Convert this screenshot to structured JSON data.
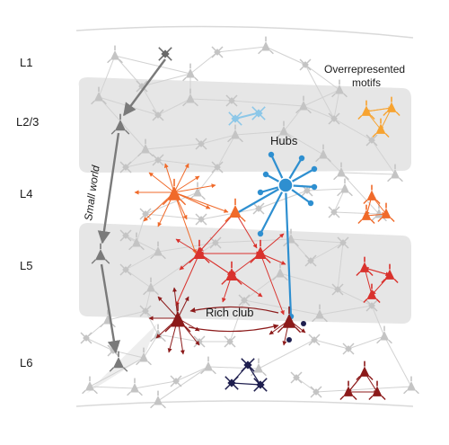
{
  "layers": [
    "L1",
    "L2/3",
    "L4",
    "L5",
    "L6"
  ],
  "labels": {
    "small_world": "Small world",
    "hubs": "Hubs",
    "rich_club": "Rich club",
    "motifs_line1": "Overrepresented",
    "motifs_line2": "motifs"
  },
  "colors": {
    "band": "#e6e6e6",
    "background_neuron": "#c4c4c4",
    "small_world": "#7a7a7a",
    "small_world_top": "#6a6a6a",
    "hub": "#2e8fd0",
    "hub_light": "#8cc7e8",
    "l4_orange": "#f06a2a",
    "l5_red": "#d9322d",
    "deep_red": "#8c1a1a",
    "motif_orange": "#f7a330",
    "motif_navy": "#1e1e4e"
  }
}
